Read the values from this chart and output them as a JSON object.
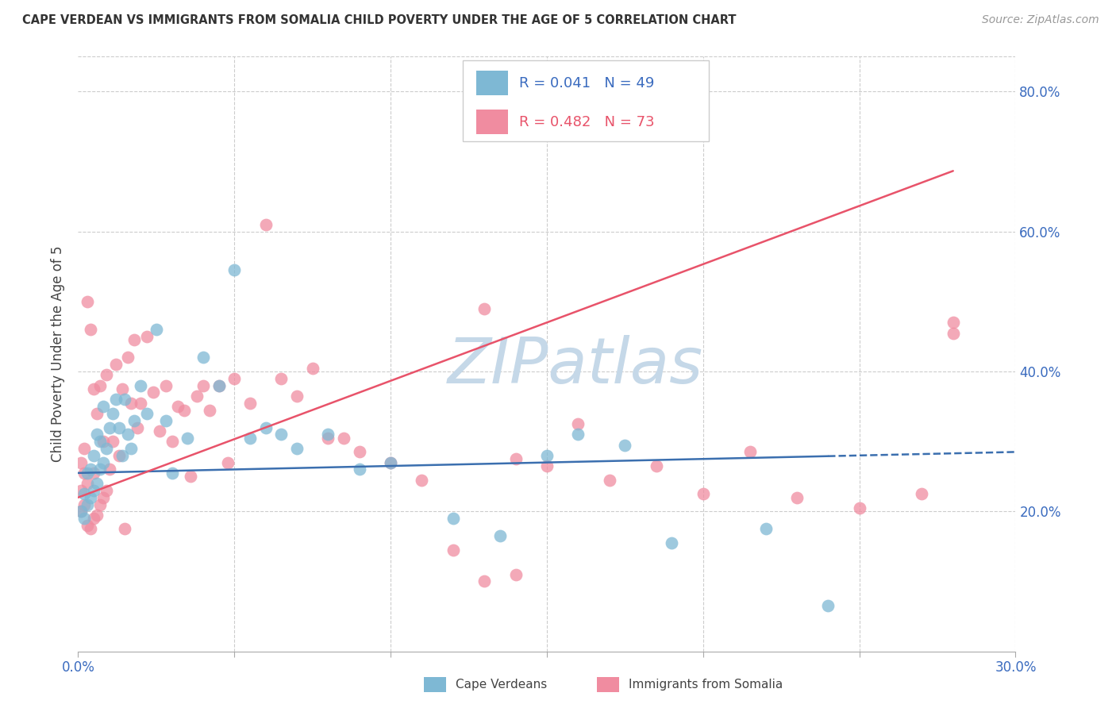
{
  "title": "CAPE VERDEAN VS IMMIGRANTS FROM SOMALIA CHILD POVERTY UNDER THE AGE OF 5 CORRELATION CHART",
  "source": "Source: ZipAtlas.com",
  "ylabel": "Child Poverty Under the Age of 5",
  "x_min": 0.0,
  "x_max": 0.3,
  "y_min": 0.0,
  "y_max": 0.85,
  "blue_label": "Cape Verdeans",
  "pink_label": "Immigrants from Somalia",
  "blue_color": "#7eb8d4",
  "pink_color": "#f08ca0",
  "blue_line_color": "#3b6faf",
  "pink_line_color": "#e8536a",
  "watermark": "ZIPatlas",
  "watermark_color": "#c5d8e8",
  "blue_r": 0.041,
  "blue_n": 49,
  "pink_r": 0.482,
  "pink_n": 73,
  "blue_line_x0": 0.0,
  "blue_line_y0": 0.255,
  "blue_line_x1": 0.3,
  "blue_line_y1": 0.285,
  "pink_line_x0": 0.0,
  "pink_line_y0": 0.22,
  "pink_line_x1": 0.3,
  "pink_line_y1": 0.72,
  "blue_scatter_x": [
    0.001,
    0.002,
    0.002,
    0.003,
    0.003,
    0.004,
    0.004,
    0.005,
    0.005,
    0.006,
    0.006,
    0.007,
    0.007,
    0.008,
    0.008,
    0.009,
    0.01,
    0.011,
    0.012,
    0.013,
    0.014,
    0.015,
    0.016,
    0.017,
    0.018,
    0.02,
    0.022,
    0.025,
    0.028,
    0.03,
    0.035,
    0.04,
    0.045,
    0.05,
    0.055,
    0.06,
    0.065,
    0.07,
    0.08,
    0.09,
    0.1,
    0.12,
    0.135,
    0.15,
    0.16,
    0.175,
    0.19,
    0.22,
    0.24
  ],
  "blue_scatter_y": [
    0.2,
    0.19,
    0.225,
    0.21,
    0.255,
    0.22,
    0.26,
    0.23,
    0.28,
    0.24,
    0.31,
    0.26,
    0.3,
    0.27,
    0.35,
    0.29,
    0.32,
    0.34,
    0.36,
    0.32,
    0.28,
    0.36,
    0.31,
    0.29,
    0.33,
    0.38,
    0.34,
    0.46,
    0.33,
    0.255,
    0.305,
    0.42,
    0.38,
    0.545,
    0.305,
    0.32,
    0.31,
    0.29,
    0.31,
    0.26,
    0.27,
    0.19,
    0.165,
    0.28,
    0.31,
    0.295,
    0.155,
    0.175,
    0.065
  ],
  "pink_scatter_x": [
    0.001,
    0.001,
    0.001,
    0.002,
    0.002,
    0.002,
    0.003,
    0.003,
    0.003,
    0.004,
    0.004,
    0.005,
    0.005,
    0.005,
    0.006,
    0.006,
    0.007,
    0.007,
    0.008,
    0.008,
    0.009,
    0.009,
    0.01,
    0.011,
    0.012,
    0.013,
    0.014,
    0.015,
    0.016,
    0.017,
    0.018,
    0.019,
    0.02,
    0.022,
    0.024,
    0.026,
    0.028,
    0.03,
    0.032,
    0.034,
    0.036,
    0.038,
    0.04,
    0.042,
    0.045,
    0.048,
    0.05,
    0.055,
    0.06,
    0.065,
    0.07,
    0.075,
    0.08,
    0.085,
    0.09,
    0.1,
    0.11,
    0.12,
    0.13,
    0.14,
    0.15,
    0.16,
    0.17,
    0.185,
    0.2,
    0.215,
    0.23,
    0.25,
    0.27,
    0.28,
    0.13,
    0.14,
    0.28
  ],
  "pink_scatter_y": [
    0.2,
    0.23,
    0.27,
    0.21,
    0.255,
    0.29,
    0.18,
    0.24,
    0.5,
    0.175,
    0.46,
    0.19,
    0.255,
    0.375,
    0.195,
    0.34,
    0.21,
    0.38,
    0.22,
    0.3,
    0.23,
    0.395,
    0.26,
    0.3,
    0.41,
    0.28,
    0.375,
    0.175,
    0.42,
    0.355,
    0.445,
    0.32,
    0.355,
    0.45,
    0.37,
    0.315,
    0.38,
    0.3,
    0.35,
    0.345,
    0.25,
    0.365,
    0.38,
    0.345,
    0.38,
    0.27,
    0.39,
    0.355,
    0.61,
    0.39,
    0.365,
    0.405,
    0.305,
    0.305,
    0.285,
    0.27,
    0.245,
    0.145,
    0.49,
    0.275,
    0.265,
    0.325,
    0.245,
    0.265,
    0.225,
    0.285,
    0.22,
    0.205,
    0.225,
    0.455,
    0.1,
    0.11,
    0.47
  ]
}
